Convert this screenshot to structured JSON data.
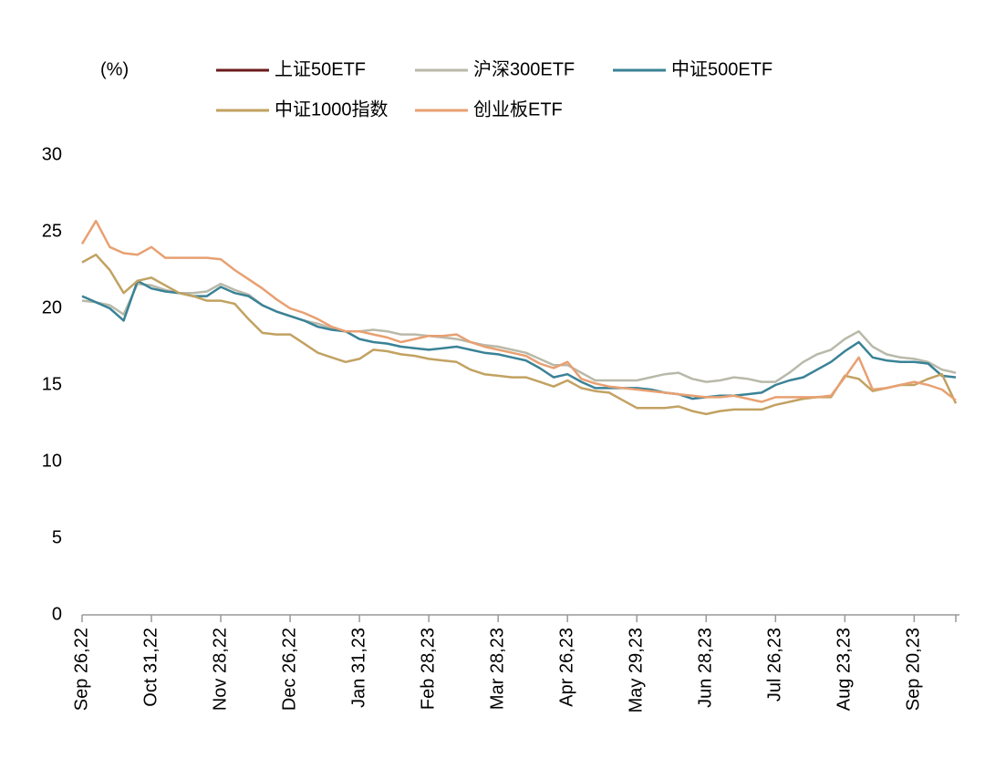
{
  "chart_data": {
    "type": "line",
    "y_label": "(%)",
    "categories": [
      "Sep 26,22",
      null,
      null,
      null,
      null,
      "Oct 31,22",
      null,
      null,
      null,
      null,
      "Nov 28,22",
      null,
      null,
      null,
      null,
      "Dec 26,22",
      null,
      null,
      null,
      null,
      "Jan 31,23",
      null,
      null,
      null,
      null,
      "Feb 28,23",
      null,
      null,
      null,
      null,
      "Mar 28,23",
      null,
      null,
      null,
      null,
      "Apr 26,23",
      null,
      null,
      null,
      null,
      "May 29,23",
      null,
      null,
      null,
      null,
      "Jun 28,23",
      null,
      null,
      null,
      null,
      "Jul 26,23",
      null,
      null,
      null,
      null,
      "Aug 23,23",
      null,
      null,
      null,
      null,
      "Sep 20,23",
      null,
      null,
      null
    ],
    "series": [
      {
        "name": "上证50ETF",
        "color": "#6b1a1a",
        "values": [
          null,
          null,
          null,
          null,
          null,
          null,
          null,
          null,
          null,
          null,
          null,
          null,
          null,
          null,
          null,
          null,
          null,
          null,
          null,
          null,
          null,
          null,
          null,
          null,
          null,
          null,
          null,
          null,
          null,
          null,
          null,
          null,
          null,
          null,
          null,
          null,
          null,
          null,
          null,
          null,
          null,
          null,
          null,
          null,
          null,
          null,
          null,
          null,
          null,
          null,
          null,
          null,
          null,
          null,
          null,
          null,
          null,
          null,
          null,
          null,
          null,
          null,
          null,
          null
        ]
      },
      {
        "name": "沪深300ETF",
        "color": "#b9b9aa",
        "values": [
          20.5,
          20.4,
          20.2,
          19.6,
          21.6,
          21.5,
          21.2,
          21,
          21,
          21.1,
          21.6,
          21.2,
          20.9,
          20.2,
          19.8,
          19.5,
          19.2,
          19,
          18.7,
          18.5,
          18.5,
          18.6,
          18.5,
          18.3,
          18.3,
          18.2,
          18.1,
          18,
          17.8,
          17.6,
          17.5,
          17.3,
          17.1,
          16.7,
          16.3,
          16.3,
          15.8,
          15.3,
          15.3,
          15.3,
          15.3,
          15.5,
          15.7,
          15.8,
          15.4,
          15.2,
          15.3,
          15.5,
          15.4,
          15.2,
          15.2,
          15.8,
          16.5,
          17,
          17.3,
          18,
          18.5,
          17.5,
          17,
          16.8,
          16.7,
          16.5,
          16,
          15.8
        ]
      },
      {
        "name": "中证500ETF",
        "color": "#3a8296",
        "values": [
          20.8,
          20.4,
          20,
          19.2,
          21.8,
          21.3,
          21.1,
          21,
          20.8,
          20.8,
          21.4,
          21,
          20.8,
          20.2,
          19.8,
          19.5,
          19.2,
          18.8,
          18.6,
          18.5,
          18,
          17.8,
          17.7,
          17.5,
          17.4,
          17.3,
          17.4,
          17.5,
          17.3,
          17.1,
          17,
          16.8,
          16.6,
          16.1,
          15.5,
          15.7,
          15.2,
          14.8,
          14.8,
          14.8,
          14.8,
          14.7,
          14.5,
          14.4,
          14.1,
          14.2,
          14.3,
          14.3,
          14.4,
          14.5,
          15,
          15.3,
          15.5,
          16,
          16.5,
          17.2,
          17.8,
          16.8,
          16.6,
          16.5,
          16.5,
          16.4,
          15.6,
          15.5
        ]
      },
      {
        "name": "中证1000指数",
        "color": "#c2a262",
        "values": [
          23,
          23.5,
          22.5,
          21,
          21.8,
          22,
          21.5,
          21,
          20.8,
          20.5,
          20.5,
          20.3,
          19.3,
          18.4,
          18.3,
          18.3,
          17.7,
          17.1,
          16.8,
          16.5,
          16.7,
          17.3,
          17.2,
          17,
          16.9,
          16.7,
          16.6,
          16.5,
          16,
          15.7,
          15.6,
          15.5,
          15.5,
          15.2,
          14.9,
          15.3,
          14.8,
          14.6,
          14.5,
          14,
          13.5,
          13.5,
          13.5,
          13.6,
          13.3,
          13.1,
          13.3,
          13.4,
          13.4,
          13.4,
          13.7,
          13.9,
          14.1,
          14.2,
          14.2,
          15.6,
          15.4,
          14.6,
          14.8,
          15,
          15,
          15.4,
          15.7,
          13.8
        ]
      },
      {
        "name": "创业板ETF",
        "color": "#e8a072",
        "values": [
          24.2,
          25.7,
          24,
          23.6,
          23.5,
          24,
          23.3,
          23.3,
          23.3,
          23.3,
          23.2,
          22.5,
          21.9,
          21.3,
          20.6,
          20,
          19.7,
          19.3,
          18.8,
          18.5,
          18.5,
          18.3,
          18.1,
          17.8,
          18,
          18.2,
          18.2,
          18.3,
          17.8,
          17.5,
          17.3,
          17.1,
          16.9,
          16.4,
          16.1,
          16.5,
          15.4,
          15.1,
          14.9,
          14.8,
          14.7,
          14.6,
          14.5,
          14.4,
          14.3,
          14.2,
          14.2,
          14.3,
          14.1,
          13.9,
          14.2,
          14.2,
          14.2,
          14.2,
          14.3,
          15.5,
          16.8,
          14.7,
          14.8,
          15,
          15.2,
          15,
          14.7,
          14
        ]
      }
    ],
    "ylim": [
      0,
      30
    ],
    "yticks": [
      0,
      5,
      10,
      15,
      20,
      25,
      30
    ],
    "grid": false
  }
}
